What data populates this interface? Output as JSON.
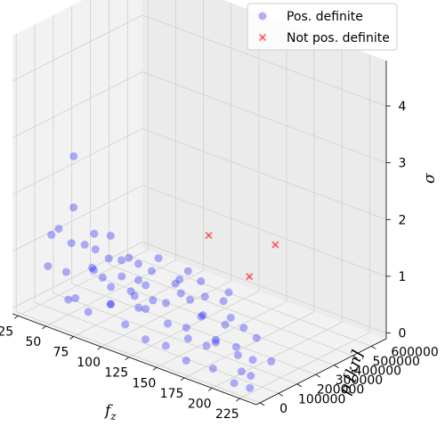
{
  "chart_data": {
    "type": "scatter",
    "dimensions": 3,
    "axes": {
      "x": {
        "label_main": "f",
        "label_sub": "z",
        "range": [
          20,
          240
        ],
        "ticks": [
          25,
          50,
          75,
          100,
          125,
          150,
          175,
          200,
          225
        ]
      },
      "y": {
        "label": "p [kn]",
        "range": [
          -20000,
          680000
        ],
        "ticks": [
          0,
          100000,
          200000,
          300000,
          400000,
          500000,
          600000
        ]
      },
      "z": {
        "label": "σ",
        "range": [
          -0.1,
          4.8
        ],
        "ticks": [
          0,
          1,
          2,
          3,
          4
        ]
      }
    },
    "grid": true,
    "legend": {
      "placement": "top-right"
    },
    "series": [
      {
        "name": "Pos. definite",
        "marker": "circle",
        "color": "#0000ff",
        "opacity": 0.3,
        "points": [
          {
            "x": 60,
            "y": 80000,
            "z": 0.3
          },
          {
            "x": 75,
            "y": 60000,
            "z": 0.2
          },
          {
            "x": 90,
            "y": 90000,
            "z": 0.4
          },
          {
            "x": 110,
            "y": 50000,
            "z": 0.25
          },
          {
            "x": 130,
            "y": 40000,
            "z": 0.15
          },
          {
            "x": 150,
            "y": 30000,
            "z": 0.2
          },
          {
            "x": 170,
            "y": 20000,
            "z": 0.1
          },
          {
            "x": 195,
            "y": 15000,
            "z": 0.15
          },
          {
            "x": 215,
            "y": 10000,
            "z": 0.05
          },
          {
            "x": 230,
            "y": 5000,
            "z": 0.08
          },
          {
            "x": 40,
            "y": 150000,
            "z": 0.5
          },
          {
            "x": 55,
            "y": 200000,
            "z": 0.6
          },
          {
            "x": 70,
            "y": 120000,
            "z": 0.8
          },
          {
            "x": 85,
            "y": 180000,
            "z": 0.7
          },
          {
            "x": 100,
            "y": 160000,
            "z": 0.5
          },
          {
            "x": 120,
            "y": 140000,
            "z": 0.6
          },
          {
            "x": 140,
            "y": 100000,
            "z": 0.4
          },
          {
            "x": 160,
            "y": 90000,
            "z": 0.3
          },
          {
            "x": 180,
            "y": 70000,
            "z": 0.35
          },
          {
            "x": 95,
            "y": 250000,
            "z": 0.5
          },
          {
            "x": 80,
            "y": 300000,
            "z": 0.4
          },
          {
            "x": 60,
            "y": 260000,
            "z": 0.7
          },
          {
            "x": 45,
            "y": 220000,
            "z": 0.9
          },
          {
            "x": 35,
            "y": 100000,
            "z": 1.2
          },
          {
            "x": 50,
            "y": 50000,
            "z": 1.5
          },
          {
            "x": 65,
            "y": 40000,
            "z": 2.0
          },
          {
            "x": 30,
            "y": 250000,
            "z": 2.3
          },
          {
            "x": 110,
            "y": 350000,
            "z": 0.3
          },
          {
            "x": 130,
            "y": 280000,
            "z": 0.45
          },
          {
            "x": 150,
            "y": 220000,
            "z": 0.4
          },
          {
            "x": 170,
            "y": 180000,
            "z": 0.2
          },
          {
            "x": 200,
            "y": 120000,
            "z": 0.25
          },
          {
            "x": 190,
            "y": 60000,
            "z": 0.5
          },
          {
            "x": 210,
            "y": 80000,
            "z": 0.1
          },
          {
            "x": 225,
            "y": 40000,
            "z": 0.2
          },
          {
            "x": 140,
            "y": 400000,
            "z": 0.3
          },
          {
            "x": 120,
            "y": 420000,
            "z": 0.2
          },
          {
            "x": 100,
            "y": 380000,
            "z": 0.35
          },
          {
            "x": 75,
            "y": 330000,
            "z": 0.6
          },
          {
            "x": 55,
            "y": 300000,
            "z": 1.0
          },
          {
            "x": 42,
            "y": 40000,
            "z": 0.8
          },
          {
            "x": 48,
            "y": 130000,
            "z": 1.1
          },
          {
            "x": 62,
            "y": 170000,
            "z": 1.3
          },
          {
            "x": 88,
            "y": 60000,
            "z": 0.9
          },
          {
            "x": 105,
            "y": 110000,
            "z": 0.7
          },
          {
            "x": 125,
            "y": 70000,
            "z": 0.6
          },
          {
            "x": 145,
            "y": 170000,
            "z": 0.25
          },
          {
            "x": 165,
            "y": 260000,
            "z": 0.3
          },
          {
            "x": 185,
            "y": 200000,
            "z": 0.15
          },
          {
            "x": 205,
            "y": 170000,
            "z": 0.12
          },
          {
            "x": 58,
            "y": 380000,
            "z": 0.5
          },
          {
            "x": 72,
            "y": 420000,
            "z": 0.3
          },
          {
            "x": 92,
            "y": 450000,
            "z": 0.25
          },
          {
            "x": 38,
            "y": 320000,
            "z": 0.6
          },
          {
            "x": 52,
            "y": 90000,
            "z": 0.2
          },
          {
            "x": 67,
            "y": 230000,
            "z": 0.3
          },
          {
            "x": 82,
            "y": 140000,
            "z": 0.25
          },
          {
            "x": 97,
            "y": 200000,
            "z": 0.2
          },
          {
            "x": 115,
            "y": 240000,
            "z": 0.35
          },
          {
            "x": 135,
            "y": 320000,
            "z": 0.15
          },
          {
            "x": 155,
            "y": 350000,
            "z": 0.2
          },
          {
            "x": 175,
            "y": 300000,
            "z": 0.25
          },
          {
            "x": 195,
            "y": 250000,
            "z": 0.3
          },
          {
            "x": 215,
            "y": 210000,
            "z": 0.1
          },
          {
            "x": 128,
            "y": 500000,
            "z": 0.2
          },
          {
            "x": 108,
            "y": 470000,
            "z": 0.3
          },
          {
            "x": 88,
            "y": 520000,
            "z": 0.25
          },
          {
            "x": 68,
            "y": 480000,
            "z": 0.4
          },
          {
            "x": 48,
            "y": 400000,
            "z": 0.35
          }
        ]
      },
      {
        "name": "Not pos. definite",
        "marker": "x",
        "color": "#ff0000",
        "opacity": 0.5,
        "points": [
          {
            "x": 100,
            "y": 560000,
            "z": 0.9
          },
          {
            "x": 140,
            "y": 540000,
            "z": 0.5
          },
          {
            "x": 150,
            "y": 620000,
            "z": 1.0
          }
        ]
      }
    ]
  }
}
